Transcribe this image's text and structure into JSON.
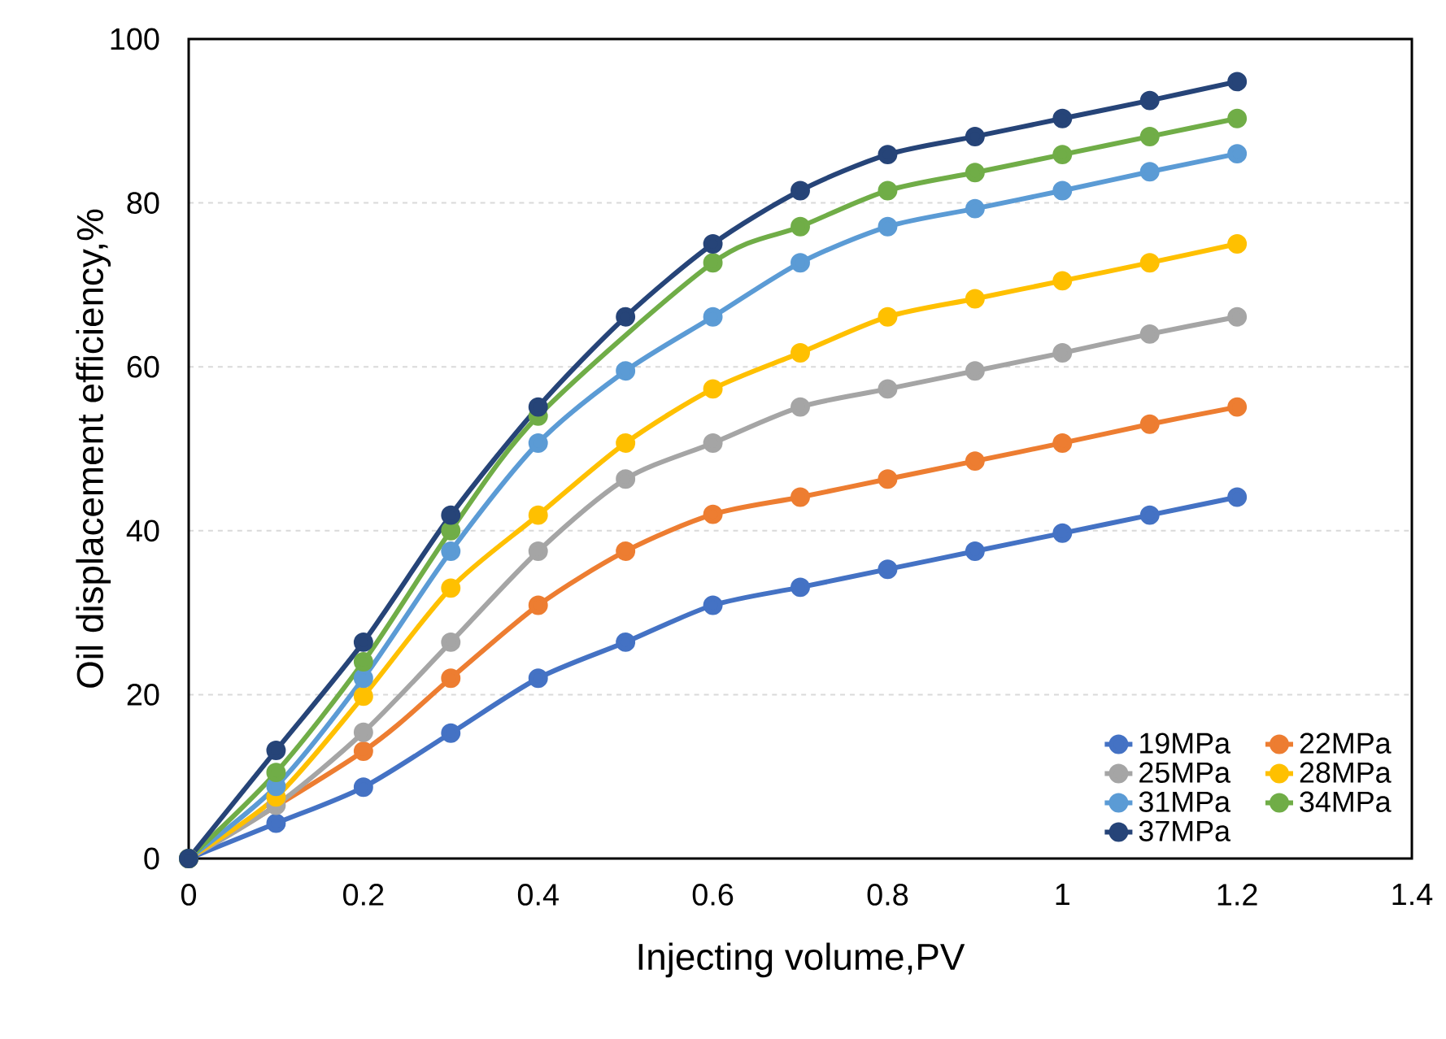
{
  "chart_data": {
    "type": "line",
    "xlabel": "Injecting volume,PV",
    "ylabel": "Oil displacement efficiency,%",
    "x": [
      0,
      0.1,
      0.2,
      0.3,
      0.4,
      0.5,
      0.6,
      0.7,
      0.8,
      0.9,
      1,
      1.1,
      1.2
    ],
    "xlim": [
      0,
      1.4
    ],
    "xticks": [
      0,
      0.2,
      0.4,
      0.6,
      0.8,
      1,
      1.2,
      1.4
    ],
    "ylim": [
      0,
      100
    ],
    "yticks": [
      0,
      20,
      40,
      60,
      80,
      100
    ],
    "grid": "y",
    "legend": "bottom right",
    "marker": "circle",
    "line_style": "solid",
    "series": [
      {
        "name": "19MPa",
        "color": "#4472c4",
        "values": [
          0,
          4.3,
          8.7,
          15.3,
          22,
          26.4,
          30.9,
          33.1,
          35.3,
          37.5,
          39.7,
          41.9,
          44.1
        ]
      },
      {
        "name": "22MPa",
        "color": "#ed7d31",
        "values": [
          0,
          null,
          13.1,
          22,
          30.9,
          37.5,
          42,
          44.1,
          46.3,
          48.5,
          50.7,
          53,
          55.1
        ]
      },
      {
        "name": "25MPa",
        "color": "#a5a5a5",
        "values": [
          0,
          6.5,
          15.4,
          26.4,
          37.5,
          46.3,
          50.7,
          55.1,
          57.3,
          59.5,
          61.7,
          64,
          66.1
        ]
      },
      {
        "name": "28MPa",
        "color": "#ffc000",
        "values": [
          0,
          7.5,
          19.8,
          33,
          41.9,
          50.7,
          57.3,
          61.7,
          66.1,
          68.3,
          70.5,
          72.7,
          75
        ]
      },
      {
        "name": "31MPa",
        "color": "#5b9bd5",
        "values": [
          0,
          8.8,
          22,
          37.5,
          50.7,
          59.5,
          66.1,
          72.7,
          77.1,
          79.3,
          81.5,
          83.8,
          86
        ]
      },
      {
        "name": "34MPa",
        "color": "#70ad47",
        "values": [
          0,
          10.5,
          24,
          40,
          54,
          null,
          72.7,
          77.1,
          81.5,
          83.7,
          85.9,
          88.1,
          90.3
        ]
      },
      {
        "name": "37MPa",
        "color": "#264478",
        "values": [
          0,
          13.2,
          26.4,
          41.9,
          55.1,
          66.1,
          75,
          81.5,
          85.9,
          88.1,
          90.3,
          92.5,
          94.8
        ]
      }
    ]
  }
}
